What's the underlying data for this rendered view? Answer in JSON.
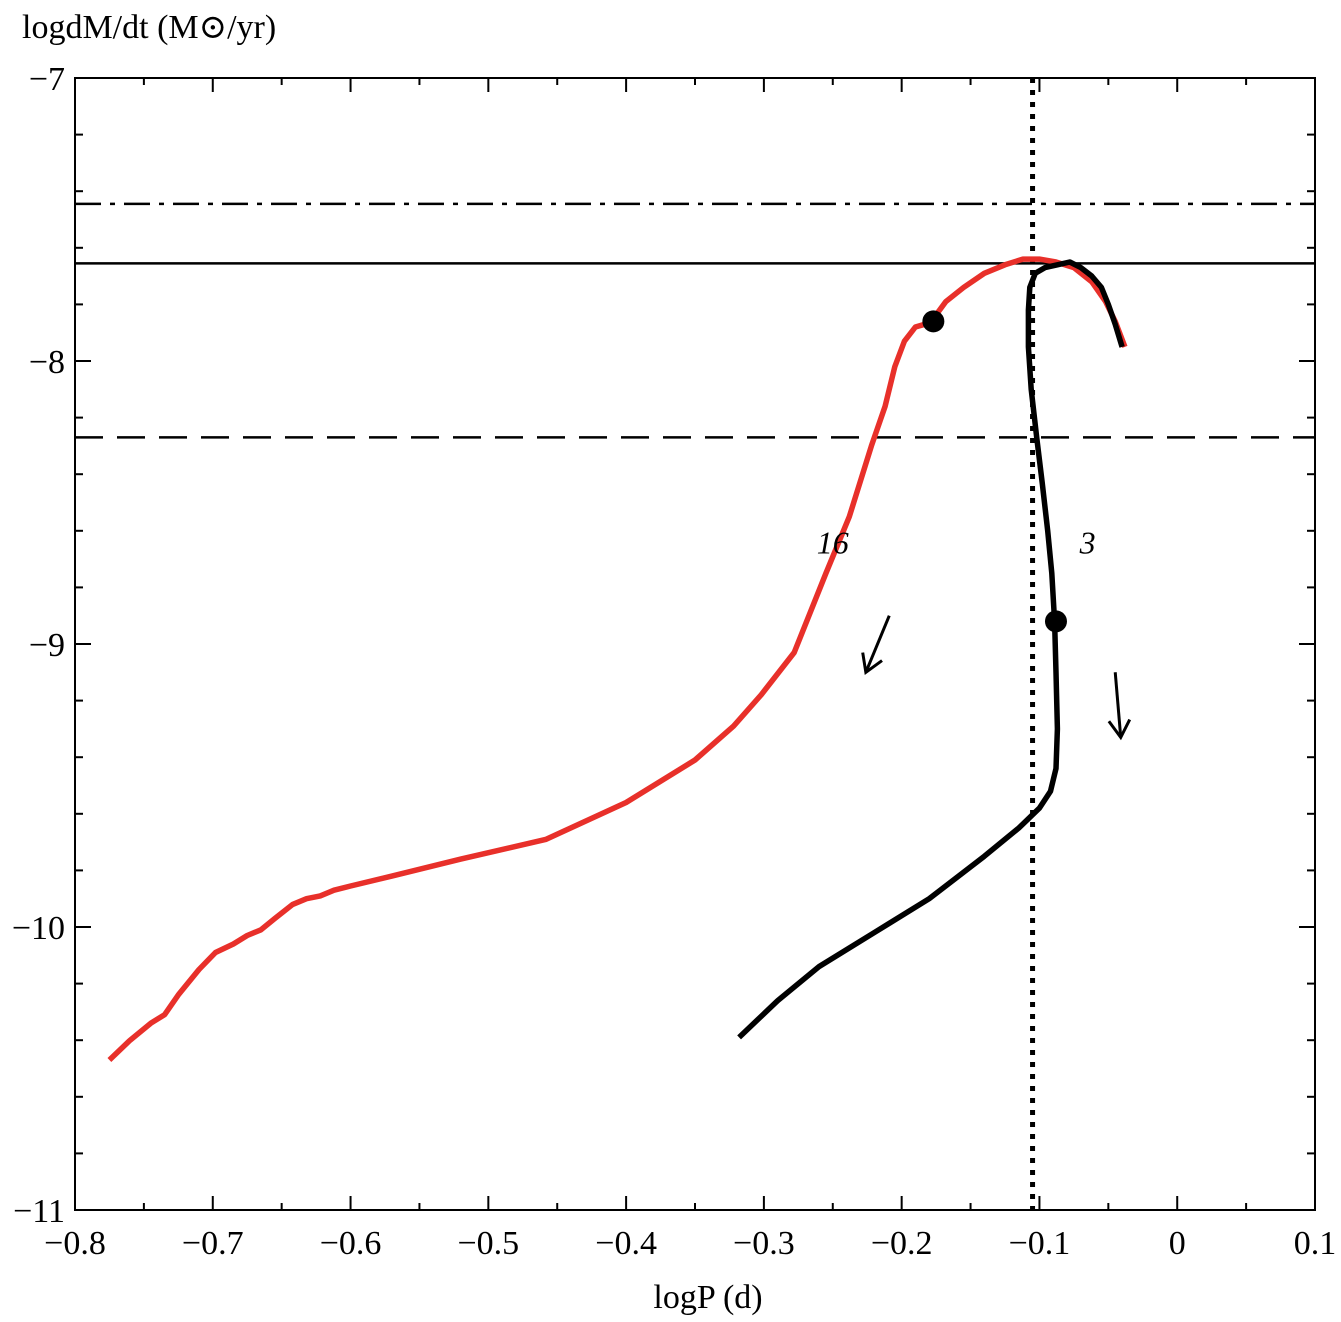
{
  "chart_data": {
    "type": "line",
    "xlabel": "logP (d)",
    "ylabel": "logdM/dt (M⊙/yr)",
    "xlim": [
      -0.8,
      0.1
    ],
    "ylim": [
      -11,
      -7
    ],
    "x_ticks": [
      -0.8,
      -0.7,
      -0.6,
      -0.5,
      -0.4,
      -0.3,
      -0.2,
      -0.1,
      0,
      0.1
    ],
    "x_tick_labels": [
      "−0.8",
      "−0.7",
      "−0.6",
      "−0.5",
      "−0.4",
      "−0.3",
      "−0.2",
      "−0.1",
      "0",
      "0.1"
    ],
    "y_ticks": [
      -11,
      -10,
      -9,
      -8,
      -7
    ],
    "y_tick_labels": [
      "−11",
      "−10",
      "−9",
      "−8",
      "−7"
    ],
    "grid": false,
    "series": [
      {
        "name": "16",
        "color": "#e8302a",
        "x": [
          -0.775,
          -0.76,
          -0.745,
          -0.735,
          -0.725,
          -0.71,
          -0.698,
          -0.685,
          -0.675,
          -0.665,
          -0.655,
          -0.642,
          -0.632,
          -0.622,
          -0.612,
          -0.6,
          -0.57,
          -0.52,
          -0.458,
          -0.4,
          -0.35,
          -0.322,
          -0.302,
          -0.278,
          -0.255,
          -0.238,
          -0.222,
          -0.212,
          -0.205,
          -0.198,
          -0.19,
          -0.183,
          -0.177,
          -0.168,
          -0.155,
          -0.14,
          -0.125,
          -0.112,
          -0.1,
          -0.088,
          -0.075,
          -0.062,
          -0.052,
          -0.045,
          -0.038
        ],
        "y": [
          -10.47,
          -10.4,
          -10.34,
          -10.31,
          -10.24,
          -10.15,
          -10.09,
          -10.06,
          -10.03,
          -10.01,
          -9.97,
          -9.92,
          -9.9,
          -9.89,
          -9.87,
          -9.855,
          -9.82,
          -9.76,
          -9.69,
          -9.56,
          -9.41,
          -9.29,
          -9.18,
          -9.03,
          -8.75,
          -8.55,
          -8.3,
          -8.16,
          -8.02,
          -7.93,
          -7.88,
          -7.87,
          -7.85,
          -7.79,
          -7.74,
          -7.69,
          -7.66,
          -7.64,
          -7.64,
          -7.65,
          -7.67,
          -7.72,
          -7.79,
          -7.86,
          -7.95
        ]
      },
      {
        "name": "3",
        "color": "#000000",
        "x": [
          -0.318,
          -0.29,
          -0.26,
          -0.22,
          -0.18,
          -0.14,
          -0.115,
          -0.1,
          -0.092,
          -0.088,
          -0.087,
          -0.088,
          -0.089,
          -0.091,
          -0.094,
          -0.098,
          -0.102,
          -0.106,
          -0.108,
          -0.108,
          -0.107,
          -0.103,
          -0.096,
          -0.087,
          -0.078,
          -0.07,
          -0.062,
          -0.055,
          -0.05,
          -0.045,
          -0.04
        ],
        "y": [
          -10.39,
          -10.26,
          -10.14,
          -10.02,
          -9.9,
          -9.75,
          -9.65,
          -9.58,
          -9.52,
          -9.44,
          -9.3,
          -9.1,
          -8.92,
          -8.75,
          -8.6,
          -8.43,
          -8.27,
          -8.1,
          -7.95,
          -7.82,
          -7.74,
          -7.69,
          -7.67,
          -7.66,
          -7.65,
          -7.67,
          -7.7,
          -7.74,
          -7.8,
          -7.87,
          -7.95
        ]
      }
    ],
    "reference_lines": [
      {
        "orientation": "horizontal",
        "y": -7.445,
        "style": "dash-dot",
        "color": "#000000"
      },
      {
        "orientation": "horizontal",
        "y": -7.655,
        "style": "solid",
        "color": "#000000"
      },
      {
        "orientation": "horizontal",
        "y": -8.27,
        "style": "dashed",
        "color": "#000000"
      },
      {
        "orientation": "vertical",
        "x": -0.105,
        "style": "dotted",
        "color": "#000000"
      }
    ],
    "markers": [
      {
        "series": "16",
        "x": -0.177,
        "y": -7.86
      },
      {
        "series": "3",
        "x": -0.088,
        "y": -8.92
      }
    ],
    "annotations": [
      {
        "text": "16",
        "x": -0.25,
        "y": -8.68
      },
      {
        "text": "3",
        "x": -0.065,
        "y": -8.68
      }
    ],
    "arrows": [
      {
        "from": [
          -0.209,
          -8.9
        ],
        "to": [
          -0.226,
          -9.1
        ]
      },
      {
        "from": [
          -0.045,
          -9.1
        ],
        "to": [
          -0.041,
          -9.33
        ]
      }
    ]
  }
}
